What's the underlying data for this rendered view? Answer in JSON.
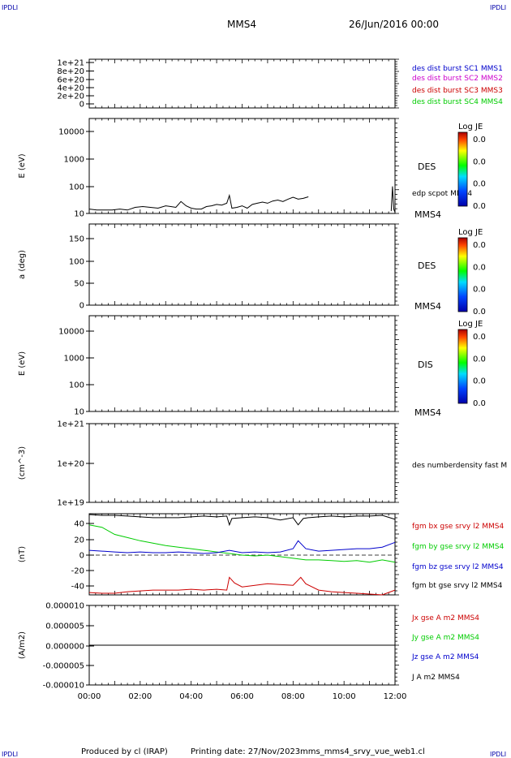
{
  "header": {
    "corner_left_top": "IPDLI",
    "corner_right_top": "IPDLI",
    "corner_left_bottom": "IPDLI",
    "corner_right_bottom": "IPDLI",
    "spacecraft": "MMS4",
    "date": "26/Jun/2016 00:00"
  },
  "footer": {
    "produced_by": "Produced by cl (IRAP)",
    "printing_date": "Printing date: 27/Nov/2023",
    "file": "mms_mms4_srvy_vue_web1.cl"
  },
  "colors": {
    "black": "#000000",
    "blue": "#0000cc",
    "magenta": "#cc00cc",
    "red": "#cc0000",
    "green": "#00cc00"
  },
  "chart_data": [
    {
      "type": "line",
      "id": "panel1",
      "ylabel": "",
      "yticks": [
        "1e+21",
        "8e+20",
        "6e+20",
        "4e+20",
        "2e+20",
        "0"
      ],
      "ylim": [
        0,
        1e+21
      ],
      "legend": [
        {
          "label": "des dist burst SC1 MMS1",
          "color": "#0000cc"
        },
        {
          "label": "des dist burst SC2 MMS2",
          "color": "#cc00cc"
        },
        {
          "label": "des dist burst SC3 MMS3",
          "color": "#cc0000"
        },
        {
          "label": "des dist burst SC4 MMS4",
          "color": "#00cc00"
        }
      ],
      "reference_line": {
        "y": 0,
        "style": "dashed"
      }
    },
    {
      "type": "line",
      "id": "panel2",
      "ylabel": "E (eV)",
      "scale": "log",
      "yticks": [
        "10000",
        "1000",
        "100",
        "10"
      ],
      "ylim": [
        10,
        15000
      ],
      "right_label": "DES",
      "series_label": "edp scpot MMS4",
      "bottom_right": "MMS4",
      "colorbar": {
        "title": "Log JE",
        "ticks": [
          "0.0",
          "0.0",
          "0.0",
          "0.0"
        ]
      },
      "series": [
        {
          "name": "edp scpot MMS4",
          "color": "#000000",
          "x": [
            0.0,
            0.3,
            0.6,
            0.9,
            1.2,
            1.5,
            1.8,
            2.1,
            2.4,
            2.7,
            3.0,
            3.2,
            3.4,
            3.6,
            3.8,
            4.0,
            4.2,
            4.4,
            4.6,
            4.8,
            5.0,
            5.2,
            5.4,
            5.5,
            5.6,
            5.8,
            6.0,
            6.2,
            6.4,
            6.6,
            6.8,
            7.0,
            7.2,
            7.4,
            7.6,
            7.8,
            8.0,
            8.2,
            8.4,
            8.6
          ],
          "y": [
            14,
            13,
            13,
            13,
            14,
            13,
            16,
            17,
            16,
            15,
            18,
            17,
            16,
            25,
            18,
            15,
            14,
            14,
            17,
            18,
            20,
            19,
            22,
            40,
            15,
            16,
            18,
            15,
            20,
            22,
            24,
            22,
            26,
            28,
            25,
            30,
            35,
            30,
            32,
            36
          ]
        },
        {
          "name": "edp scpot MMS4 end",
          "color": "#000000",
          "x": [
            11.85,
            11.9,
            11.95,
            12.0
          ],
          "y": [
            12,
            80,
            14,
            11
          ]
        }
      ]
    },
    {
      "type": "heatmap",
      "id": "panel3",
      "ylabel": "a (deg)",
      "yticks": [
        "150",
        "100",
        "50",
        "0"
      ],
      "ylim": [
        0,
        180
      ],
      "right_label": "DES",
      "bottom_right": "MMS4",
      "colorbar": {
        "title": "Log JE",
        "ticks": [
          "0.0",
          "0.0",
          "0.0",
          "0.0"
        ]
      }
    },
    {
      "type": "heatmap",
      "id": "panel4",
      "ylabel": "E (eV)",
      "scale": "log",
      "yticks": [
        "10000",
        "1000",
        "100",
        "10"
      ],
      "ylim": [
        10,
        15000
      ],
      "right_label": "DIS",
      "bottom_right": "MMS4",
      "colorbar": {
        "title": "Log JE",
        "ticks": [
          "0.0",
          "0.0",
          "0.0",
          "0.0"
        ]
      }
    },
    {
      "type": "line",
      "id": "panel5",
      "ylabel": "(cm^-3)",
      "scale": "log",
      "yticks": [
        "1e+21",
        "1e+20",
        "1e+19"
      ],
      "ylim": [
        1e+19,
        1e+21
      ],
      "legend": [
        {
          "label": "des numberdensity fast M",
          "color": "#000000"
        }
      ]
    },
    {
      "type": "line",
      "id": "panel6",
      "ylabel": "(nT)",
      "yticks": [
        "40",
        "20",
        "0",
        "-20",
        "-40"
      ],
      "ylim": [
        -50,
        52
      ],
      "reference_line": {
        "y": 0,
        "style": "dashed"
      },
      "legend": [
        {
          "label": "fgm bx gse srvy l2 MMS4",
          "color": "#cc0000"
        },
        {
          "label": "fgm by gse srvy l2 MMS4",
          "color": "#00cc00"
        },
        {
          "label": "fgm bz gse srvy l2 MMS4",
          "color": "#0000cc"
        },
        {
          "label": "fgm bt gse srvy l2 MMS4",
          "color": "#000000"
        }
      ],
      "series": [
        {
          "name": "fgm bt gse srvy l2 MMS4",
          "color": "#000000",
          "x": [
            0,
            0.5,
            1,
            1.5,
            2,
            2.5,
            3,
            3.5,
            4,
            4.5,
            5,
            5.4,
            5.5,
            5.6,
            6,
            6.5,
            7,
            7.5,
            8,
            8.2,
            8.4,
            8.6,
            9,
            9.5,
            10,
            10.5,
            11,
            11.5,
            12
          ],
          "y": [
            51,
            50,
            50,
            49,
            48,
            47,
            47,
            47,
            48,
            49,
            48,
            49,
            38,
            46,
            47,
            48,
            47,
            44,
            47,
            38,
            46,
            47,
            48,
            49,
            48,
            49,
            49,
            50,
            45
          ]
        },
        {
          "name": "fgm by gse srvy l2 MMS4",
          "color": "#00cc00",
          "x": [
            0,
            0.5,
            1,
            1.5,
            2,
            2.5,
            3,
            3.5,
            4,
            4.5,
            5,
            5.5,
            6,
            6.5,
            7,
            7.5,
            8,
            8.5,
            9,
            9.5,
            10,
            10.5,
            11,
            11.5,
            12
          ],
          "y": [
            38,
            35,
            26,
            22,
            18,
            15,
            12,
            10,
            8,
            6,
            4,
            2,
            0,
            -1,
            0,
            -2,
            -4,
            -6,
            -6,
            -7,
            -8,
            -7,
            -9,
            -6,
            -9
          ]
        },
        {
          "name": "fgm bz gse srvy l2 MMS4",
          "color": "#0000cc",
          "x": [
            0,
            0.5,
            1,
            1.5,
            2,
            2.5,
            3,
            3.5,
            4,
            4.5,
            5,
            5.5,
            6,
            6.5,
            7,
            7.5,
            8,
            8.2,
            8.5,
            9,
            9.5,
            10,
            10.5,
            11,
            11.5,
            12
          ],
          "y": [
            6,
            5,
            4,
            3,
            4,
            3,
            3,
            4,
            3,
            2,
            3,
            6,
            3,
            4,
            3,
            4,
            8,
            18,
            8,
            5,
            6,
            7,
            8,
            8,
            10,
            16
          ]
        },
        {
          "name": "fgm bx gse srvy l2 MMS4",
          "color": "#cc0000",
          "x": [
            0,
            0.5,
            1,
            1.5,
            2,
            2.5,
            3,
            3.5,
            4,
            4.5,
            5,
            5.4,
            5.5,
            5.7,
            6,
            6.5,
            7,
            7.5,
            8,
            8.3,
            8.5,
            9,
            9.5,
            10,
            10.5,
            11,
            11.5,
            12
          ],
          "y": [
            -47,
            -48,
            -48,
            -46,
            -45,
            -44,
            -44,
            -44,
            -43,
            -44,
            -43,
            -44,
            -28,
            -35,
            -40,
            -38,
            -36,
            -37,
            -38,
            -28,
            -36,
            -44,
            -46,
            -47,
            -48,
            -49,
            -50,
            -44
          ]
        }
      ]
    },
    {
      "type": "line",
      "id": "panel7",
      "ylabel": "(A/m2)",
      "yticks": [
        "0.000010",
        "0.000005",
        "0.000000",
        "-0.000005",
        "-0.000010"
      ],
      "ylim": [
        -1e-05,
        1e-05
      ],
      "legend": [
        {
          "label": "Jx gse A m2 MMS4",
          "color": "#cc0000"
        },
        {
          "label": "Jy gse A m2 MMS4",
          "color": "#00cc00"
        },
        {
          "label": "Jz gse A m2 MMS4",
          "color": "#0000cc"
        },
        {
          "label": "J A m2 MMS4",
          "color": "#000000"
        }
      ],
      "series": [
        {
          "name": "J A m2 MMS4",
          "color": "#000000",
          "x": [
            0,
            12
          ],
          "y": [
            0,
            0
          ]
        }
      ],
      "xticks": [
        "00:00",
        "02:00",
        "04:00",
        "06:00",
        "08:00",
        "10:00",
        "12:00"
      ],
      "xlim": [
        0,
        12
      ]
    }
  ]
}
